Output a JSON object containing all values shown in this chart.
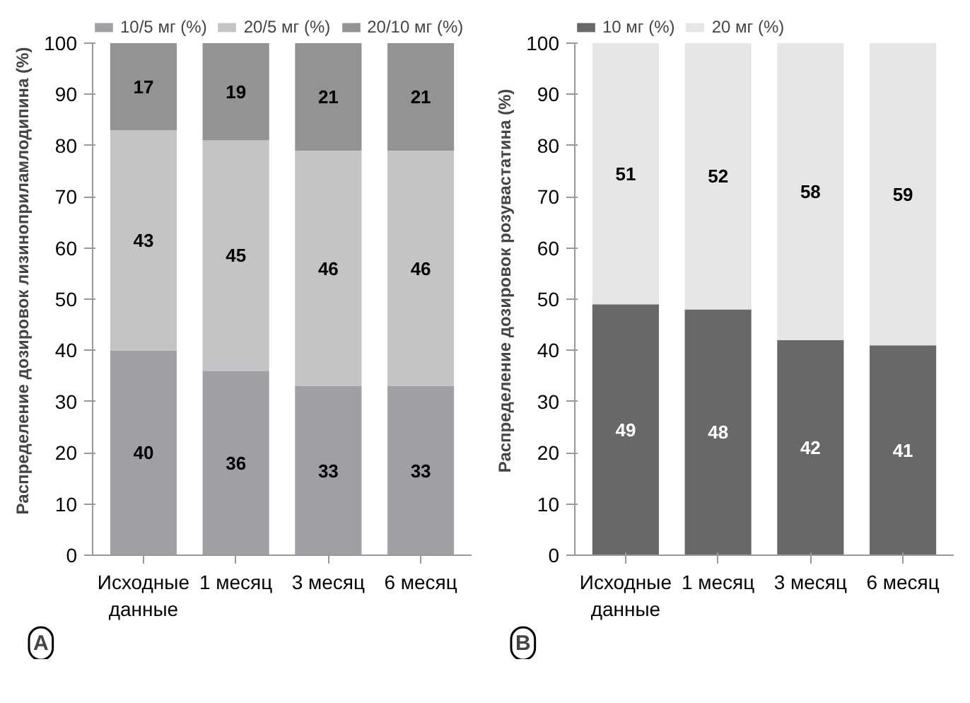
{
  "chart_data": [
    {
      "type": "bar",
      "stacked": true,
      "ylabel": "Распределение дозировок лизиноприламлодипина (%)",
      "categories": [
        "Исходные\nданные",
        "1 месяц",
        "3 месяц",
        "6 месяц"
      ],
      "series": [
        {
          "name": "10/5 мг (%)",
          "color": "#a0a0a4",
          "values": [
            40,
            36,
            33,
            33
          ]
        },
        {
          "name": "20/5 мг (%)",
          "color": "#c4c4c6",
          "values": [
            43,
            45,
            46,
            46
          ]
        },
        {
          "name": "20/10 мг (%)",
          "color": "#939396",
          "values": [
            17,
            19,
            21,
            21
          ]
        }
      ],
      "ylim": [
        0,
        100
      ],
      "yticks": [
        0,
        10,
        20,
        30,
        40,
        50,
        60,
        70,
        80,
        90,
        100
      ],
      "data_labels": true,
      "legend": "top",
      "grid": false,
      "annotations": [
        "A"
      ]
    },
    {
      "type": "bar",
      "stacked": true,
      "ylabel": "Распределение дозировок розувастатина (%)",
      "categories": [
        "Исходные\nданные",
        "1 месяц",
        "3 месяц",
        "6 месяц"
      ],
      "series": [
        {
          "name": "10 мг (%)",
          "color": "#68686b",
          "values": [
            49,
            48,
            42,
            41
          ]
        },
        {
          "name": "20 мг (%)",
          "color": "#e6e6e7",
          "values": [
            51,
            52,
            58,
            59
          ]
        }
      ],
      "ylim": [
        0,
        100
      ],
      "yticks": [
        0,
        10,
        20,
        30,
        40,
        50,
        60,
        70,
        80,
        90,
        100
      ],
      "data_labels": true,
      "legend": "top",
      "grid": false,
      "annotations": [
        "B"
      ]
    }
  ]
}
